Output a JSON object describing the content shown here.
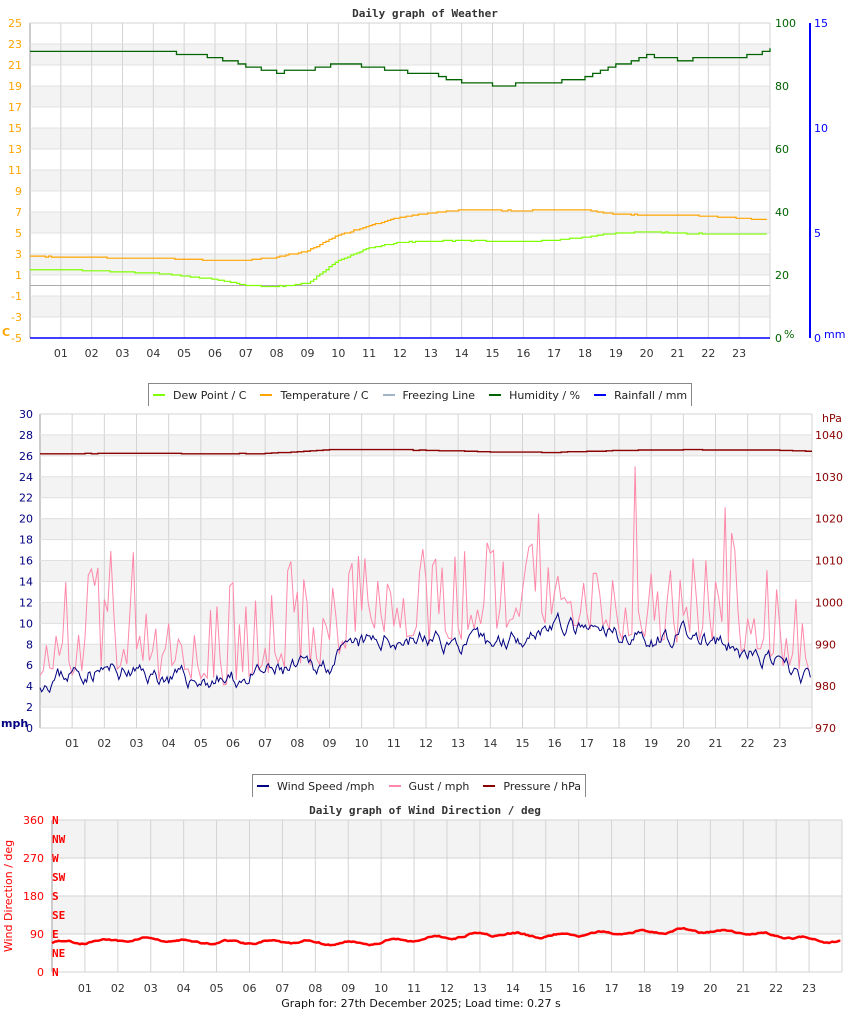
{
  "chart_data": [
    {
      "type": "line",
      "title": "Daily graph of Weather",
      "x_label_ticks": [
        "01",
        "02",
        "03",
        "04",
        "05",
        "06",
        "07",
        "08",
        "09",
        "10",
        "11",
        "12",
        "13",
        "14",
        "15",
        "16",
        "17",
        "18",
        "19",
        "20",
        "21",
        "22",
        "23"
      ],
      "x_hours": [
        0,
        1,
        2,
        3,
        4,
        5,
        6,
        7,
        8,
        9,
        10,
        11,
        12,
        13,
        14,
        15,
        16,
        17,
        18,
        19,
        20,
        21,
        22,
        23,
        24
      ],
      "axes": {
        "left": {
          "unit": "C",
          "range": [
            -5,
            25
          ],
          "ticks": [
            "25",
            "23",
            "21",
            "19",
            "17",
            "15",
            "13",
            "11",
            "9",
            "7",
            "5",
            "3",
            "1",
            "-1",
            "-3",
            "-5"
          ],
          "color": "#ffa500"
        },
        "right_humidity": {
          "unit": "%",
          "range": [
            0,
            100
          ],
          "ticks": [
            "100",
            "80",
            "60",
            "40",
            "20",
            "0"
          ],
          "color": "#006400"
        },
        "right_rain": {
          "unit": "mm",
          "range": [
            0,
            15
          ],
          "ticks": [
            "15",
            "10",
            "5",
            "0"
          ],
          "color": "#0000ff"
        }
      },
      "grid": true,
      "legend_position": "bottom",
      "series": [
        {
          "name": "Dew Point / C",
          "color": "#7fff00",
          "axis": "left",
          "values": [
            1.5,
            1.5,
            1.4,
            1.3,
            1.2,
            0.9,
            0.6,
            0.0,
            -0.1,
            0.2,
            2.4,
            3.6,
            4.1,
            4.2,
            4.3,
            4.2,
            4.2,
            4.3,
            4.6,
            5.0,
            5.1,
            5.0,
            4.9,
            4.9,
            4.9
          ]
        },
        {
          "name": "Temperature / C",
          "color": "#ffa500",
          "axis": "left",
          "values": [
            2.8,
            2.7,
            2.7,
            2.6,
            2.6,
            2.5,
            2.4,
            2.4,
            2.7,
            3.3,
            4.8,
            5.7,
            6.5,
            6.9,
            7.2,
            7.2,
            7.1,
            7.2,
            7.2,
            6.8,
            6.7,
            6.7,
            6.6,
            6.4,
            6.3
          ]
        },
        {
          "name": "Freezing Line",
          "color": "#a0b4c8",
          "axis": "left",
          "values": [
            0,
            0,
            0,
            0,
            0,
            0,
            0,
            0,
            0,
            0,
            0,
            0,
            0,
            0,
            0,
            0,
            0,
            0,
            0,
            0,
            0,
            0,
            0,
            0,
            0
          ]
        },
        {
          "name": "Humidity / %",
          "color": "#006400",
          "axis": "right_humidity",
          "values": [
            91.1,
            91.1,
            91.1,
            91.1,
            91.1,
            90.2,
            89.2,
            86.0,
            84.4,
            85.0,
            87.3,
            86.0,
            84.8,
            83.5,
            81.3,
            80.3,
            80.6,
            81.3,
            82.5,
            86.7,
            89.8,
            88.3,
            88.9,
            88.9,
            92.0
          ]
        },
        {
          "name": "Rainfall / mm",
          "color": "#0000ff",
          "axis": "right_rain",
          "values": [
            0,
            0,
            0,
            0,
            0,
            0,
            0,
            0,
            0,
            0,
            0,
            0,
            0,
            0,
            0,
            0,
            0,
            0,
            0,
            0,
            0,
            0,
            0,
            0,
            0
          ]
        }
      ]
    },
    {
      "type": "line",
      "title": "",
      "x_label_ticks": [
        "01",
        "02",
        "03",
        "04",
        "05",
        "06",
        "07",
        "08",
        "09",
        "10",
        "11",
        "12",
        "13",
        "14",
        "15",
        "16",
        "17",
        "18",
        "19",
        "20",
        "21",
        "22",
        "23"
      ],
      "x_hours": [
        0,
        1,
        2,
        3,
        4,
        5,
        6,
        7,
        8,
        9,
        10,
        11,
        12,
        13,
        14,
        15,
        16,
        17,
        18,
        19,
        20,
        21,
        22,
        23,
        24
      ],
      "axes": {
        "left": {
          "unit": "mph",
          "range": [
            0,
            30
          ],
          "ticks": [
            "30",
            "28",
            "26",
            "24",
            "22",
            "20",
            "18",
            "16",
            "14",
            "12",
            "10",
            "8",
            "6",
            "4",
            "2",
            "0"
          ],
          "color": "#000080"
        },
        "right": {
          "unit": "hPa",
          "range": [
            970,
            1045
          ],
          "ticks": [
            "1040",
            "1030",
            "1020",
            "1010",
            "1000",
            "990",
            "980",
            "970"
          ],
          "color": "#8b0000"
        }
      },
      "grid": true,
      "legend_position": "bottom",
      "series": [
        {
          "name": "Wind Speed /mph",
          "color": "#000080",
          "axis": "left",
          "values": [
            4.5,
            5.3,
            5.5,
            5.2,
            4.8,
            4.5,
            4.5,
            5.2,
            5.6,
            6.2,
            8.0,
            8.5,
            8.5,
            8.0,
            8.0,
            9.0,
            10.0,
            9.0,
            9.0,
            8.5,
            9.0,
            8.0,
            7.0,
            6.0,
            4.5
          ]
        },
        {
          "name": "Gust / mph",
          "color": "#ff88aa",
          "axis": "left",
          "values": [
            9,
            9,
            10,
            9,
            8,
            8,
            8,
            9,
            10,
            10,
            13,
            13,
            12,
            12,
            13,
            14,
            14,
            13,
            12,
            12,
            12,
            12,
            11,
            10,
            9
          ]
        },
        {
          "name": "Pressure / hPa",
          "color": "#8b0000",
          "axis": "right",
          "values": [
            1035.5,
            1035.5,
            1035.6,
            1035.6,
            1035.6,
            1035.5,
            1035.5,
            1035.6,
            1036.0,
            1036.5,
            1036.5,
            1036.5,
            1036.3,
            1036.2,
            1035.9,
            1035.9,
            1035.8,
            1036.1,
            1036.3,
            1036.4,
            1036.5,
            1036.4,
            1036.4,
            1036.3,
            1036.1
          ]
        }
      ]
    },
    {
      "type": "scatter",
      "title": "Daily graph of Wind Direction / deg",
      "x_label_ticks": [
        "01",
        "02",
        "03",
        "04",
        "05",
        "06",
        "07",
        "08",
        "09",
        "10",
        "11",
        "12",
        "13",
        "14",
        "15",
        "16",
        "17",
        "18",
        "19",
        "20",
        "21",
        "22",
        "23"
      ],
      "x_hours": [
        0,
        1,
        2,
        3,
        4,
        5,
        6,
        7,
        8,
        9,
        10,
        11,
        12,
        13,
        14,
        15,
        16,
        17,
        18,
        19,
        20,
        21,
        22,
        23,
        24
      ],
      "axes": {
        "left": {
          "label": "Wind Direction / deg",
          "range": [
            0,
            360
          ],
          "ticks": [
            "360",
            "270",
            "180",
            "90",
            "0"
          ],
          "color": "#ff0000"
        },
        "compass": [
          "N",
          "NW",
          "W",
          "SW",
          "S",
          "SE",
          "E",
          "NE",
          "N"
        ]
      },
      "grid": true,
      "series": [
        {
          "color": "#ff0000",
          "values": [
            70,
            72,
            75,
            78,
            72,
            70,
            72,
            70,
            70,
            68,
            72,
            78,
            82,
            92,
            88,
            85,
            88,
            92,
            95,
            98,
            96,
            95,
            85,
            78,
            72
          ]
        }
      ]
    }
  ],
  "footer": "Graph for: 27th December 2025; Load time: 0.27 s"
}
